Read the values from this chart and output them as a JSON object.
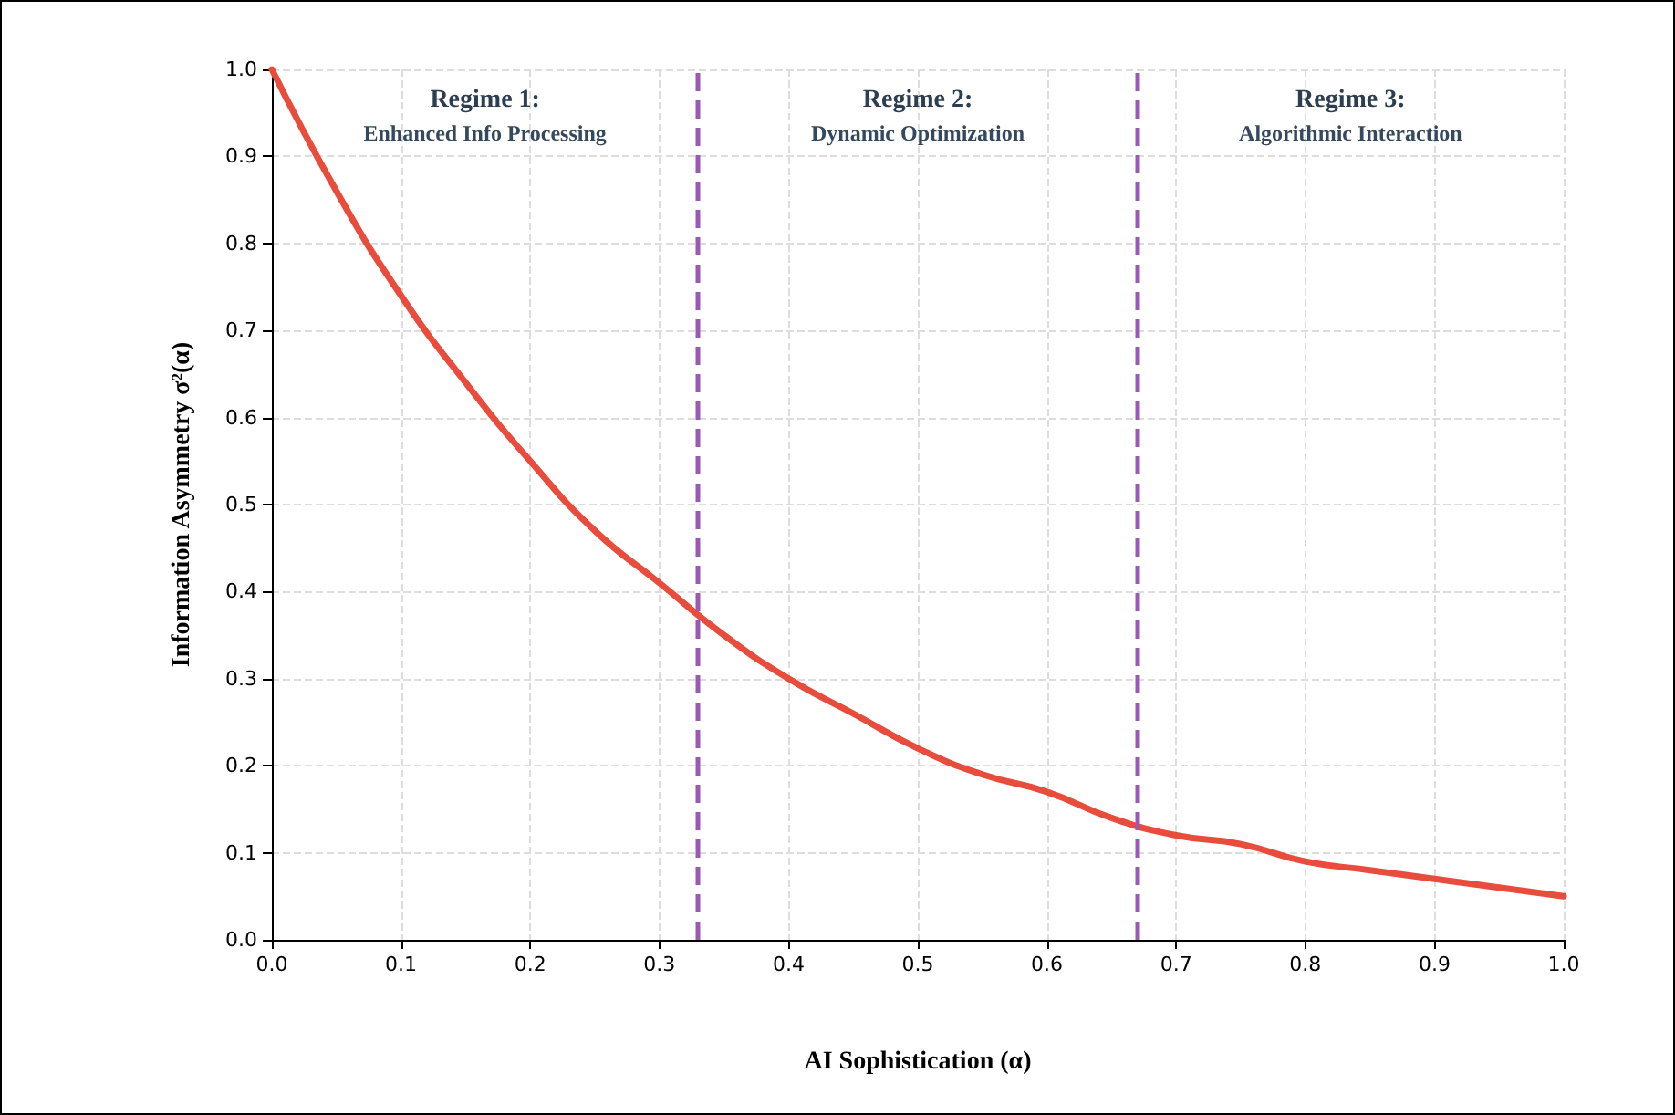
{
  "chart_data": {
    "type": "line",
    "xlabel": "AI Sophistication (α)",
    "ylabel": "Information Asymmetry σ²(α)",
    "x": [
      0,
      0.05,
      0.1,
      0.15,
      0.2,
      0.25,
      0.3,
      0.35,
      0.4,
      0.45,
      0.5,
      0.55,
      0.6,
      0.65,
      0.7,
      0.75,
      0.8,
      0.85,
      0.9,
      0.95,
      1.0
    ],
    "series": [
      {
        "color": "#e74c3c",
        "values": [
          1.0,
          0.86,
          0.74,
          0.64,
          0.55,
          0.47,
          0.41,
          0.35,
          0.3,
          0.26,
          0.22,
          0.19,
          0.17,
          0.14,
          0.12,
          0.11,
          0.09,
          0.08,
          0.07,
          0.06,
          0.05
        ]
      }
    ],
    "xlim": [
      0,
      1
    ],
    "ylim": [
      0,
      1
    ],
    "xticks": [
      {
        "value": 0,
        "label": "0.0"
      },
      0.1,
      0.2,
      0.3,
      0.4,
      0.5,
      0.6,
      0.7,
      0.8,
      0.9,
      {
        "value": 1,
        "label": "1.0"
      }
    ],
    "yticks": [
      {
        "value": 0,
        "label": "0.0"
      },
      0.1,
      0.2,
      0.3,
      0.4,
      0.5,
      0.6,
      0.7,
      0.8,
      0.9,
      {
        "value": 1,
        "label": "1.0"
      }
    ],
    "grid": true,
    "marker": "none",
    "line_style": "solid",
    "ref_lines": [
      {
        "axis": "x",
        "value": 0.33,
        "color": "#9b59b6",
        "line_style": "dashed"
      },
      {
        "axis": "x",
        "value": 0.67,
        "color": "#9b59b6",
        "line_style": "dashed"
      }
    ],
    "annotations": [
      "Regime 1:\nEnhanced Info Processing",
      "Regime 2:\nDynamic Optimization",
      "Regime 3:\nAlgorithmic Interaction"
    ]
  }
}
